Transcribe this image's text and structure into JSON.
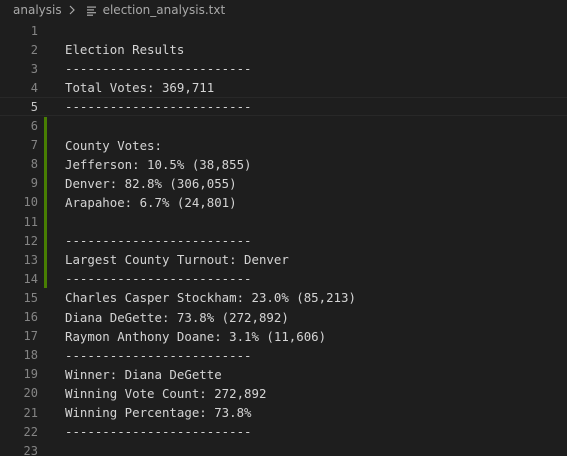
{
  "breadcrumb": {
    "folder": "analysis",
    "file": "election_analysis.txt",
    "file_icon": "text-file-icon",
    "separator_icon": "chevron-right-icon"
  },
  "editor": {
    "active_line": 5,
    "modified_lines": [
      6,
      7,
      8,
      9,
      10,
      11,
      12,
      13,
      14
    ],
    "colors": {
      "background": "#1e1e1e",
      "text": "#d4d4d4",
      "line_number": "#858585",
      "active_line_number": "#c6c6c6",
      "modified_gutter": "#487e02"
    },
    "lines": [
      {
        "n": "1",
        "text": ""
      },
      {
        "n": "2",
        "text": "Election Results"
      },
      {
        "n": "3",
        "text": "-------------------------"
      },
      {
        "n": "4",
        "text": "Total Votes: 369,711"
      },
      {
        "n": "5",
        "text": "-------------------------"
      },
      {
        "n": "6",
        "text": ""
      },
      {
        "n": "7",
        "text": "County Votes:"
      },
      {
        "n": "8",
        "text": "Jefferson: 10.5% (38,855)"
      },
      {
        "n": "9",
        "text": "Denver: 82.8% (306,055)"
      },
      {
        "n": "10",
        "text": "Arapahoe: 6.7% (24,801)"
      },
      {
        "n": "11",
        "text": ""
      },
      {
        "n": "12",
        "text": "-------------------------"
      },
      {
        "n": "13",
        "text": "Largest County Turnout: Denver"
      },
      {
        "n": "14",
        "text": "-------------------------"
      },
      {
        "n": "15",
        "text": "Charles Casper Stockham: 23.0% (85,213)"
      },
      {
        "n": "16",
        "text": "Diana DeGette: 73.8% (272,892)"
      },
      {
        "n": "17",
        "text": "Raymon Anthony Doane: 3.1% (11,606)"
      },
      {
        "n": "18",
        "text": "-------------------------"
      },
      {
        "n": "19",
        "text": "Winner: Diana DeGette"
      },
      {
        "n": "20",
        "text": "Winning Vote Count: 272,892"
      },
      {
        "n": "21",
        "text": "Winning Percentage: 73.8%"
      },
      {
        "n": "22",
        "text": "-------------------------"
      },
      {
        "n": "23",
        "text": ""
      }
    ]
  }
}
